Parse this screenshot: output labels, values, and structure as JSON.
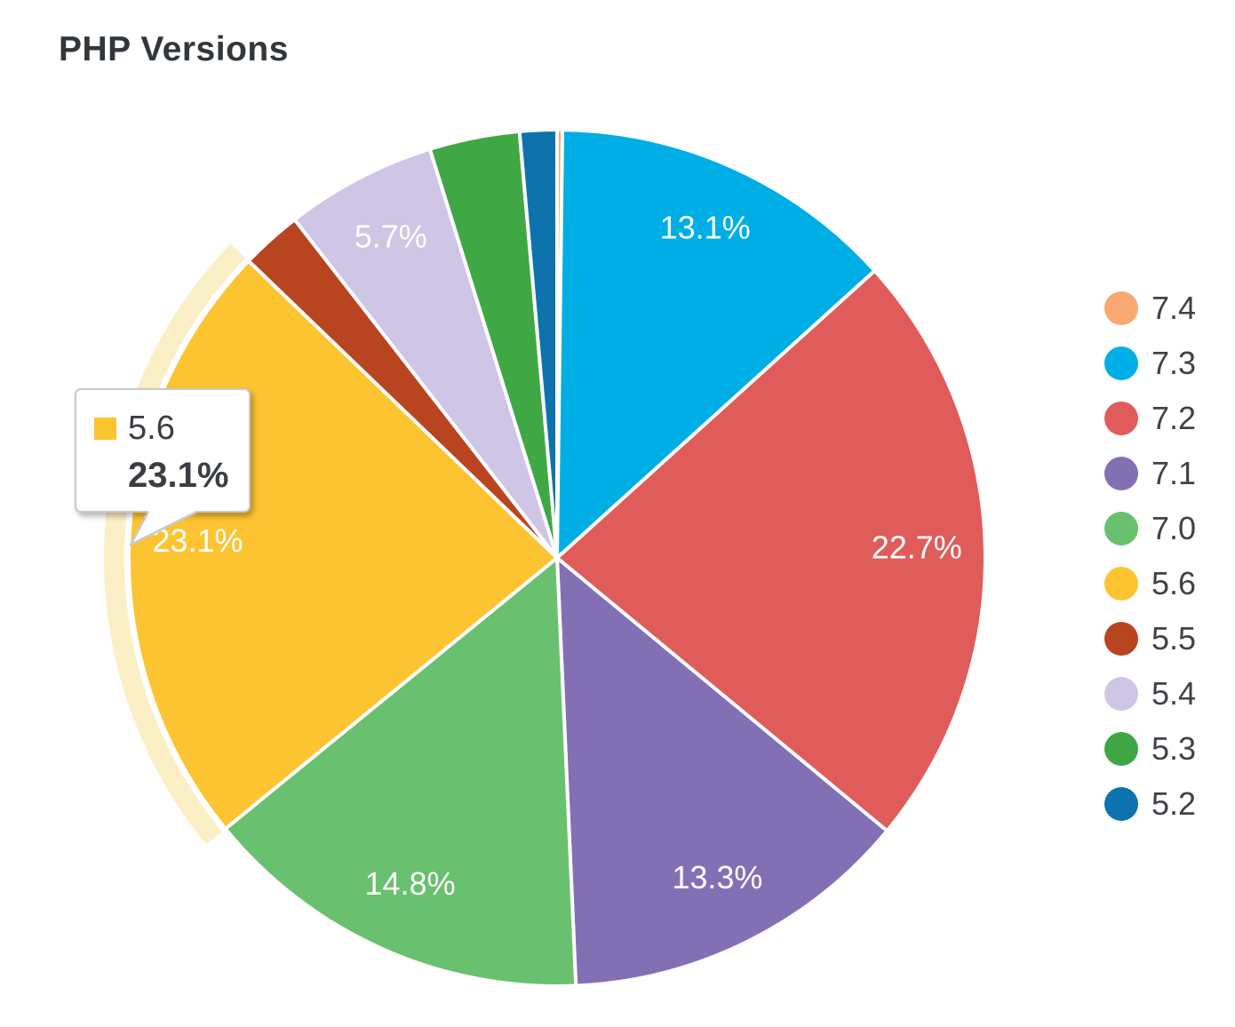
{
  "page": {
    "title": "PHP Versions"
  },
  "chart_data": {
    "type": "pie",
    "title": "PHP Versions",
    "unit": "%",
    "start_angle_deg": 0,
    "direction": "clockwise",
    "legend_position": "right",
    "grid": false,
    "slices": [
      {
        "label": "7.4",
        "value": 0.2,
        "color": "#F9A871",
        "pct_text": ""
      },
      {
        "label": "7.3",
        "value": 13.1,
        "color": "#00AEE6",
        "pct_text": "13.1%"
      },
      {
        "label": "7.2",
        "value": 22.7,
        "color": "#E05C5B",
        "pct_text": "22.7%"
      },
      {
        "label": "7.1",
        "value": 13.3,
        "color": "#8370B4",
        "pct_text": "13.3%"
      },
      {
        "label": "7.0",
        "value": 14.8,
        "color": "#69C06E",
        "pct_text": "14.8%"
      },
      {
        "label": "5.6",
        "value": 23.1,
        "color": "#FDC432",
        "pct_text": "23.1%",
        "highlighted": true
      },
      {
        "label": "5.5",
        "value": 2.3,
        "color": "#B94520",
        "pct_text": ""
      },
      {
        "label": "5.4",
        "value": 5.7,
        "color": "#CFC5E4",
        "pct_text": "5.7%"
      },
      {
        "label": "5.3",
        "value": 3.4,
        "color": "#3FA844",
        "pct_text": ""
      },
      {
        "label": "5.2",
        "value": 1.4,
        "color": "#0E73AD",
        "pct_text": ""
      }
    ],
    "highlight_halo_color": "#FBEFC6",
    "slice_label_color": "#FFFFFF"
  },
  "tooltip": {
    "label": "5.6",
    "value_text": "23.1%",
    "swatch_color": "#FDC432"
  },
  "colors": {
    "title_text": "#32373C",
    "legend_text": "#3F4347",
    "slice_border": "#FFFFFF",
    "tooltip_border": "#C9C9C9",
    "tooltip_bg": "#FFFFFF"
  }
}
